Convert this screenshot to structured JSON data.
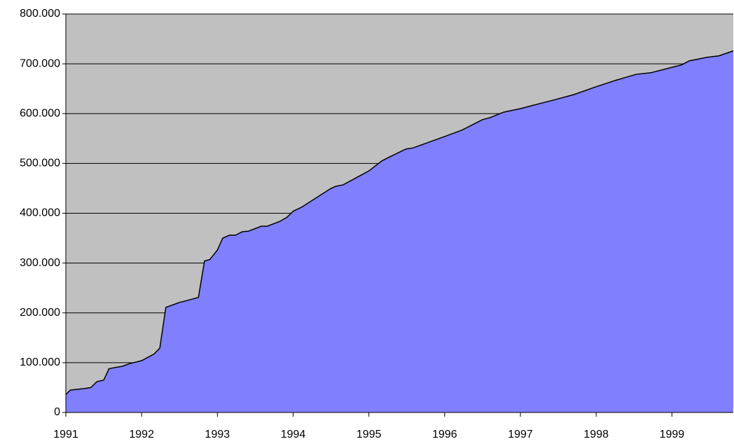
{
  "chart_data": {
    "type": "area",
    "x": [
      1991.0,
      1991.06,
      1991.24,
      1991.33,
      1991.41,
      1991.5,
      1991.57,
      1991.75,
      1991.84,
      1992.0,
      1992.16,
      1992.24,
      1992.32,
      1992.5,
      1992.58,
      1992.75,
      1992.83,
      1992.9,
      1993.0,
      1993.07,
      1993.16,
      1993.24,
      1993.33,
      1993.41,
      1993.58,
      1993.66,
      1993.83,
      1993.92,
      1994.0,
      1994.11,
      1994.49,
      1994.56,
      1994.66,
      1995.0,
      1995.17,
      1995.26,
      1995.49,
      1995.58,
      1996.0,
      1996.23,
      1996.5,
      1996.6,
      1996.78,
      1997.0,
      1997.15,
      1997.43,
      1997.7,
      1998.0,
      1998.26,
      1998.53,
      1998.72,
      1999.0,
      1999.13,
      1999.23,
      1999.46,
      1999.62,
      1999.81
    ],
    "series": [
      {
        "color": "#8080ff",
        "values": [
          36000,
          45000,
          48000,
          50000,
          62000,
          65000,
          88000,
          93000,
          98000,
          104000,
          117000,
          129000,
          211000,
          221000,
          224000,
          231000,
          304000,
          307000,
          326000,
          350000,
          356000,
          356000,
          363000,
          364000,
          374000,
          374000,
          384000,
          392000,
          404000,
          412000,
          449000,
          454000,
          457000,
          485000,
          505000,
          512000,
          529000,
          531000,
          554000,
          567000,
          588000,
          592000,
          603000,
          610000,
          616000,
          627000,
          638000,
          654000,
          667000,
          679000,
          682000,
          693000,
          698000,
          706000,
          713000,
          716000,
          726000
        ]
      }
    ],
    "xlim": [
      1991,
      1999.81
    ],
    "xticks": [
      1991,
      1992,
      1993,
      1994,
      1995,
      1996,
      1997,
      1998,
      1999
    ],
    "ylim": [
      0,
      800000
    ],
    "yticks": [
      0,
      {
        "value": 100000,
        "label": "100.000"
      },
      {
        "value": 200000,
        "label": "200.000"
      },
      {
        "value": 300000,
        "label": "300.000"
      },
      {
        "value": 400000,
        "label": "400.000"
      },
      {
        "value": 500000,
        "label": "500.000"
      },
      {
        "value": 600000,
        "label": "600.000"
      },
      {
        "value": 700000,
        "label": "700.000"
      },
      {
        "value": 800000,
        "label": "800.000"
      }
    ],
    "grid": true,
    "background": "#c0c0c0",
    "line_color": "#000000"
  }
}
